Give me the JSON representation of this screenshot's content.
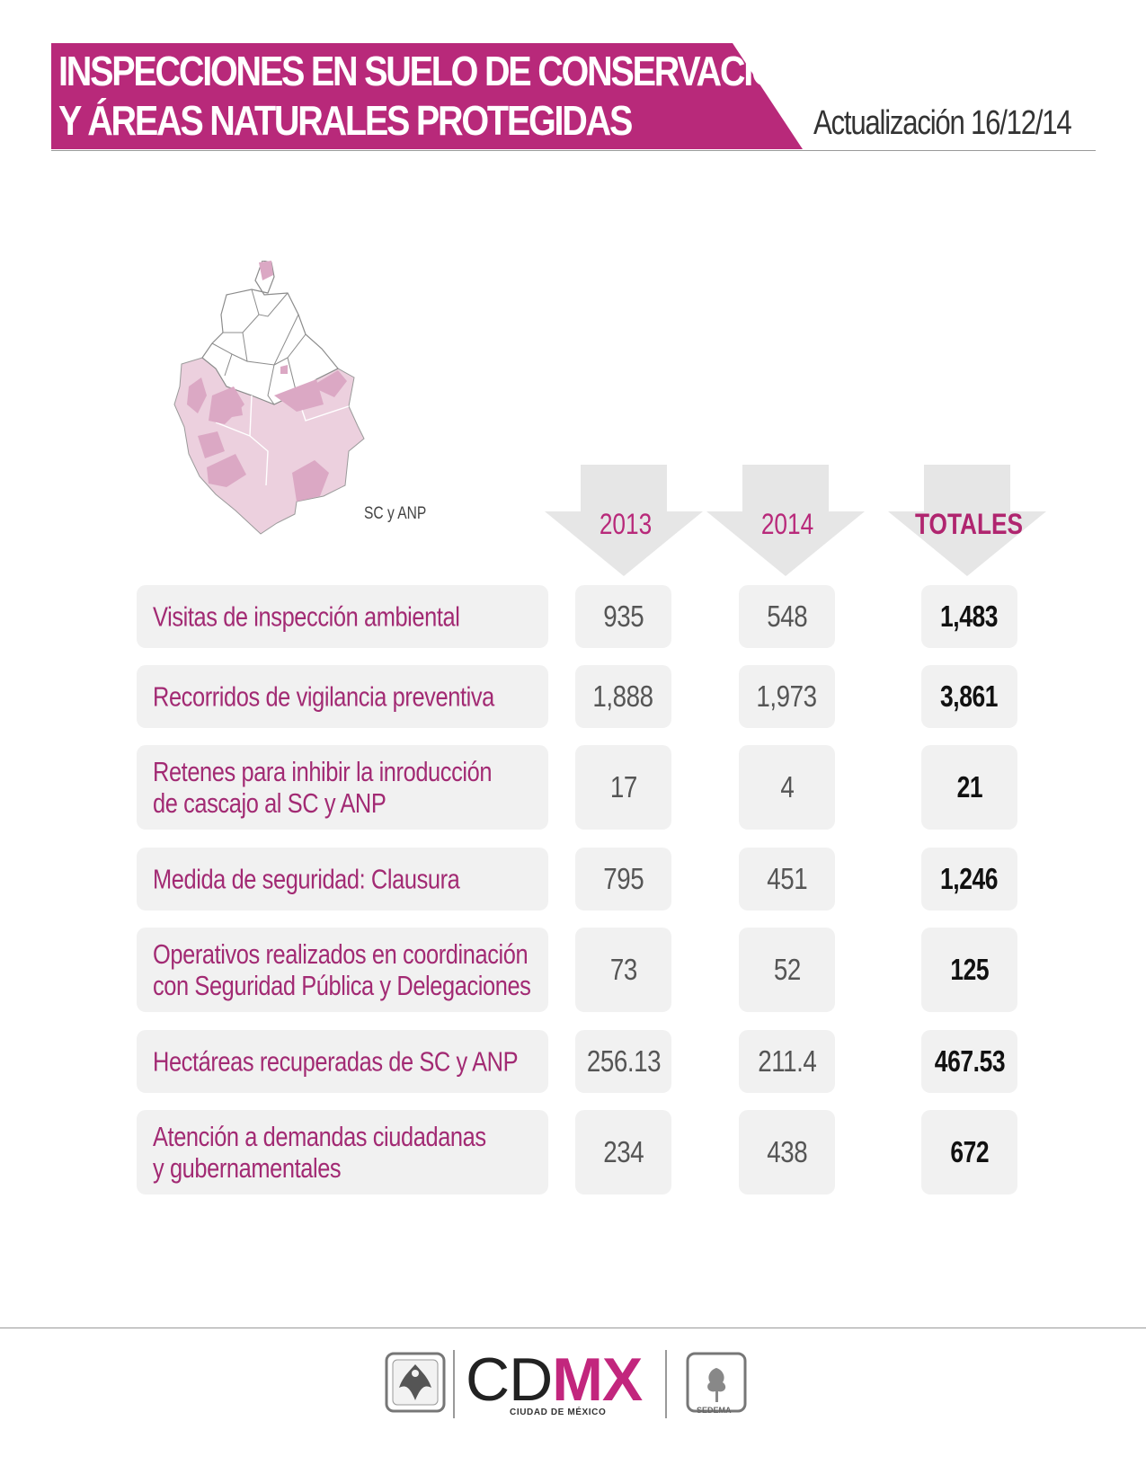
{
  "header": {
    "title_line1": "INSPECCIONES EN SUELO DE CONSERVACIÓN",
    "title_line2": "Y ÁREAS NATURALES PROTEGIDAS",
    "update": "Actualización 16/12/14",
    "banner_color": "#b8297a"
  },
  "map": {
    "label": "SC y ANP",
    "highlight_color": "#dba8c4"
  },
  "columns": [
    "2013",
    "2014",
    "TOTALES"
  ],
  "rows": [
    {
      "label": "Visitas de inspección ambiental",
      "y2013": "935",
      "y2014": "548",
      "total": "1,483"
    },
    {
      "label": "Recorridos de vigilancia preventiva",
      "y2013": "1,888",
      "y2014": "1,973",
      "total": "3,861"
    },
    {
      "label": "Retenes para inhibir la inroducción\nde cascajo al SC y ANP",
      "y2013": "17",
      "y2014": "4",
      "total": "21"
    },
    {
      "label": "Medida de seguridad: Clausura",
      "y2013": "795",
      "y2014": "451",
      "total": "1,246"
    },
    {
      "label": "Operativos realizados en coordinación\ncon Seguridad Pública y Delegaciones",
      "y2013": "73",
      "y2014": "52",
      "total": "125"
    },
    {
      "label": "Hectáreas recuperadas de SC y ANP",
      "y2013": "256.13",
      "y2014": "211.4",
      "total": "467.53"
    },
    {
      "label": "Atención a demandas ciudadanas\ny gubernamentales",
      "y2013": "234",
      "y2014": "438",
      "total": "672"
    }
  ],
  "footer": {
    "logo_cd": "CD",
    "logo_mx": "MX",
    "logo_sub": "CIUDAD DE MÉXICO",
    "sedema": "SEDEMA"
  }
}
